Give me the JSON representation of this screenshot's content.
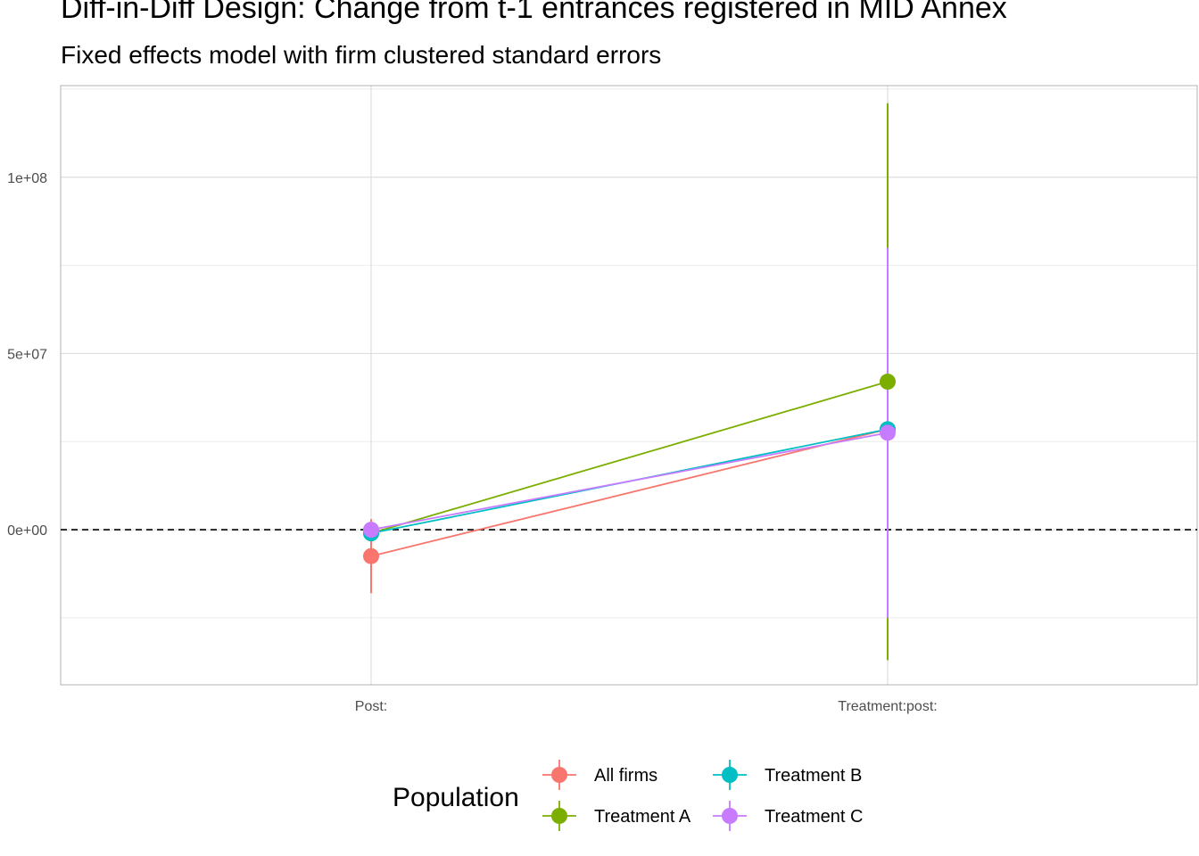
{
  "title": "Diff-in-Diff Design: Change from t-1 entrances registered in MID Annex",
  "subtitle": "Fixed effects model with firm clustered standard errors",
  "chart_data": {
    "type": "scatter",
    "title": "Diff-in-Diff Design: Change from t-1 entrances registered in MID Annex",
    "subtitle": "Fixed effects model with firm clustered standard errors",
    "xlabel": "",
    "ylabel": "",
    "categories": [
      "Post:",
      "Treatment:post:"
    ],
    "ylim": [
      -44000000,
      126000000
    ],
    "y_ticks": [
      0,
      50000000,
      100000000
    ],
    "y_tick_labels": [
      "0e+00",
      "5e+07",
      "1e+08"
    ],
    "reference_line": {
      "y": 0,
      "style": "dashed"
    },
    "grid": true,
    "legend": {
      "title": "Population",
      "position": "bottom"
    },
    "series": [
      {
        "name": "All firms",
        "color": "#F8766D",
        "estimates": [
          -7500000,
          28500000
        ],
        "lower": [
          -18000000,
          28500000
        ],
        "upper": [
          3000000,
          28500000
        ]
      },
      {
        "name": "Treatment A",
        "color": "#7CAE00",
        "estimates": [
          -1000000,
          42000000
        ],
        "lower": [
          -3000000,
          -37000000
        ],
        "upper": [
          1000000,
          121000000
        ]
      },
      {
        "name": "Treatment B",
        "color": "#00BFC4",
        "estimates": [
          -1000000,
          28500000
        ],
        "lower": [
          -3000000,
          28500000
        ],
        "upper": [
          1000000,
          28500000
        ]
      },
      {
        "name": "Treatment C",
        "color": "#C77CFF",
        "estimates": [
          0,
          27500000
        ],
        "lower": [
          -2000000,
          -25000000
        ],
        "upper": [
          2000000,
          80000000
        ]
      }
    ]
  }
}
